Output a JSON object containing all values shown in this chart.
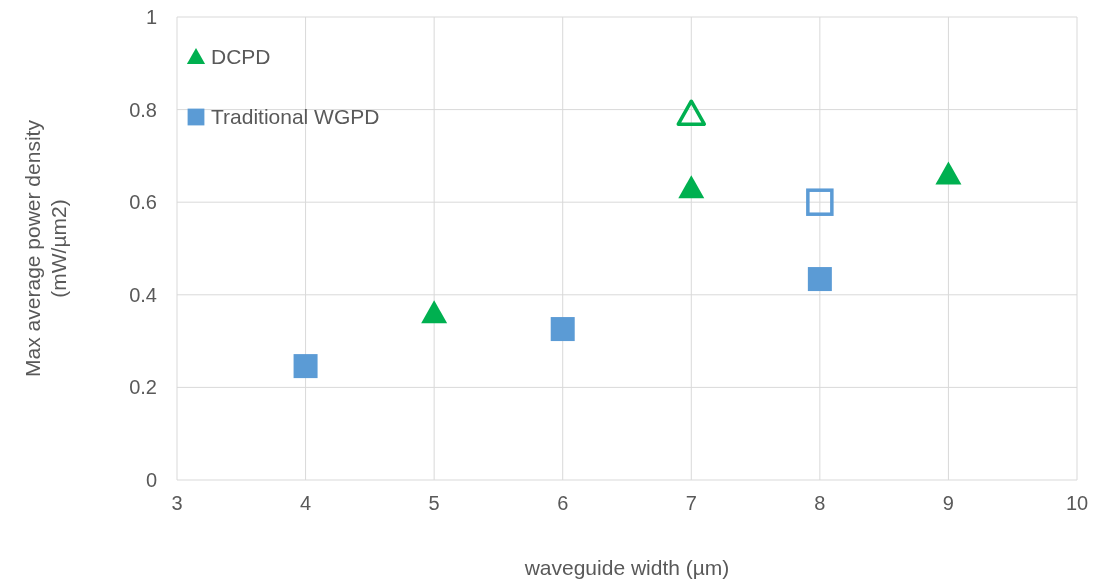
{
  "chart_data": {
    "type": "scatter",
    "xlabel": "waveguide width (µm)",
    "ylabel": "Max average power density\n(mW/µm2)",
    "xlim": [
      3,
      10
    ],
    "xticks": [
      3,
      4,
      5,
      6,
      7,
      8,
      9,
      10
    ],
    "ylim": [
      0,
      1
    ],
    "yticks": [
      0,
      {
        "value": 0.2,
        "label": "0.2"
      },
      {
        "value": 0.4,
        "label": "0.4"
      },
      {
        "value": 0.6,
        "label": "0.6"
      },
      {
        "value": 0.8,
        "label": "0.8"
      },
      1
    ],
    "grid": true,
    "legend": "top left",
    "series": [
      {
        "name": "DCPD",
        "color": "#00b050",
        "marker": "triangle",
        "x": [
          5,
          7,
          9
        ],
        "values": [
          0.36,
          0.63,
          0.66
        ]
      },
      {
        "name": "Traditional WGPD",
        "color": "#5b9bd5",
        "marker": "square",
        "x": [
          4,
          6,
          8
        ],
        "values": [
          0.246,
          0.326,
          0.434
        ]
      },
      {
        "color": "#00b050",
        "marker": "triangle",
        "x": [
          7
        ],
        "values": [
          0.79
        ]
      },
      {
        "color": "#5b9bd5",
        "marker": "square",
        "x": [
          8
        ],
        "values": [
          0.6
        ]
      }
    ]
  }
}
